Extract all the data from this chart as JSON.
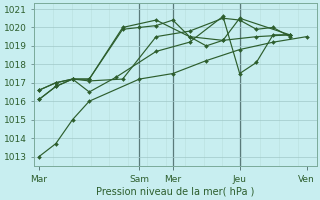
{
  "xlabel": "Pression niveau de la mer( hPa )",
  "bg_color": "#c8eef0",
  "grid_major_color": "#a0c8c8",
  "grid_minor_color": "#b8dede",
  "line_color": "#2d5e2d",
  "vline_color": "#5a7a7a",
  "ylim": [
    1012.5,
    1021.3
  ],
  "yticks": [
    1013,
    1014,
    1015,
    1016,
    1017,
    1018,
    1019,
    1020,
    1021
  ],
  "day_labels": [
    "Mar",
    "Sam",
    "Mer",
    "Jeu",
    "Ven"
  ],
  "day_tick_positions": [
    0,
    3.0,
    4.0,
    6.0,
    8.0
  ],
  "vline_positions": [
    3.0,
    4.0,
    6.0
  ],
  "series": [
    {
      "x": [
        0,
        0.5,
        1.0,
        1.5,
        3.0,
        4.0,
        5.0,
        6.0,
        7.0,
        8.0
      ],
      "y": [
        1013.0,
        1013.7,
        1015.0,
        1016.0,
        1017.2,
        1017.5,
        1018.2,
        1018.8,
        1019.2,
        1019.5
      ]
    },
    {
      "x": [
        0,
        0.5,
        1.0,
        1.5,
        2.5,
        3.5,
        4.5,
        5.5,
        6.5,
        7.5
      ],
      "y": [
        1016.1,
        1016.8,
        1017.2,
        1017.2,
        1020.0,
        1020.4,
        1019.5,
        1019.3,
        1019.5,
        1019.6
      ]
    },
    {
      "x": [
        0,
        0.5,
        1.0,
        1.5,
        2.5,
        3.0,
        3.5,
        4.0,
        4.5,
        5.0,
        5.5,
        6.0,
        7.5
      ],
      "y": [
        1016.6,
        1017.0,
        1017.2,
        1017.2,
        1019.9,
        1020.0,
        1020.1,
        1020.4,
        1019.5,
        1019.0,
        1019.3,
        1020.5,
        1019.6
      ]
    },
    {
      "x": [
        0,
        0.5,
        1.0,
        1.5,
        2.5,
        3.5,
        4.5,
        5.5,
        6.0,
        6.5,
        7.0,
        7.5
      ],
      "y": [
        1016.6,
        1017.0,
        1017.2,
        1017.1,
        1017.2,
        1019.5,
        1019.8,
        1020.5,
        1020.4,
        1019.9,
        1020.0,
        1019.5
      ]
    },
    {
      "x": [
        0,
        0.5,
        1.0,
        1.5,
        2.3,
        3.5,
        4.5,
        5.5,
        6.0,
        6.5,
        7.0,
        7.5
      ],
      "y": [
        1016.1,
        1016.8,
        1017.2,
        1016.5,
        1017.3,
        1018.7,
        1019.2,
        1020.6,
        1017.5,
        1018.1,
        1019.6,
        1019.6
      ]
    }
  ]
}
